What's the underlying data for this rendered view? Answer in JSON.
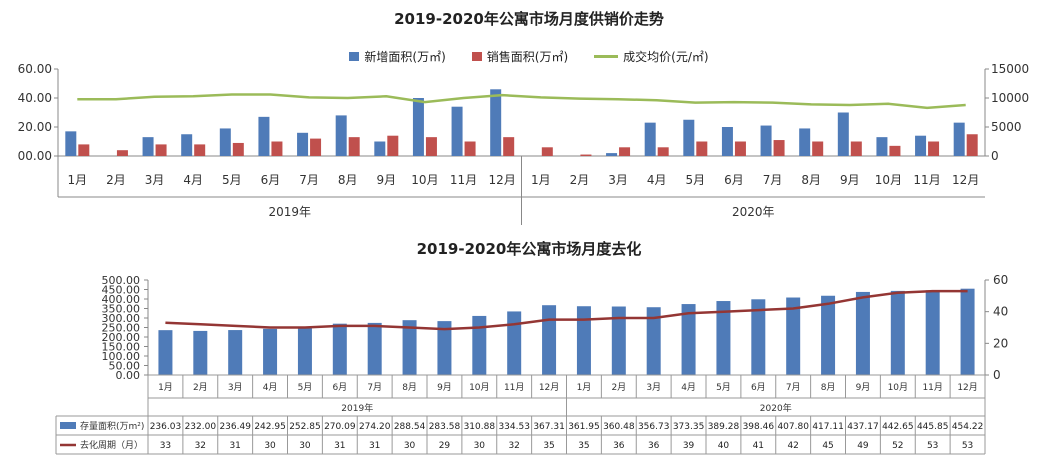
{
  "chart_data": [
    {
      "type": "bar",
      "title": "2019-2020年公寓市场月度供销价走势",
      "categories": [
        "1月",
        "2月",
        "3月",
        "4月",
        "5月",
        "6月",
        "7月",
        "8月",
        "9月",
        "10月",
        "11月",
        "12月",
        "1月",
        "2月",
        "3月",
        "4月",
        "5月",
        "6月",
        "7月",
        "8月",
        "9月",
        "10月",
        "11月",
        "12月"
      ],
      "groups": [
        {
          "label": "2019年",
          "span": 12
        },
        {
          "label": "2020年",
          "span": 12
        }
      ],
      "series": [
        {
          "name": "新增面积(万㎡)",
          "type": "bar",
          "axis": "left",
          "color": "#4F7BB8",
          "values": [
            17,
            0,
            13,
            15,
            19,
            27,
            16,
            28,
            10,
            40,
            34,
            46,
            0,
            0,
            2,
            23,
            25,
            20,
            21,
            19,
            30,
            13,
            14,
            23
          ]
        },
        {
          "name": "销售面积(万㎡)",
          "type": "bar",
          "axis": "left",
          "color": "#C0504D",
          "values": [
            8,
            4,
            8,
            8,
            9,
            10,
            12,
            13,
            14,
            13,
            10,
            13,
            6,
            1,
            6,
            6,
            10,
            10,
            11,
            10,
            10,
            7,
            10,
            15
          ]
        },
        {
          "name": "成交均价(元/㎡)",
          "type": "line",
          "axis": "right",
          "color": "#9BBB59",
          "values": [
            9800,
            9800,
            10200,
            10300,
            10600,
            10600,
            10100,
            10000,
            10300,
            9300,
            10000,
            10500,
            10100,
            9900,
            9800,
            9600,
            9200,
            9300,
            9200,
            8900,
            8800,
            9000,
            8300,
            8800
          ]
        }
      ],
      "ylim": [
        0,
        60
      ],
      "y_ticks": [
        "60.00",
        "40.00",
        "20.00",
        "00.00"
      ],
      "y2lim": [
        0,
        15000
      ],
      "y2_ticks": [
        "15000",
        "10000",
        "5000",
        "0"
      ],
      "legend": "top-center",
      "grid": false
    },
    {
      "type": "bar",
      "title": "2019-2020年公寓市场月度去化",
      "categories": [
        "1月",
        "2月",
        "3月",
        "4月",
        "5月",
        "6月",
        "7月",
        "8月",
        "9月",
        "10月",
        "11月",
        "12月",
        "1月",
        "2月",
        "3月",
        "4月",
        "5月",
        "6月",
        "7月",
        "8月",
        "9月",
        "10月",
        "11月",
        "12月"
      ],
      "groups": [
        {
          "label": "2019年",
          "span": 12
        },
        {
          "label": "2020年",
          "span": 12
        }
      ],
      "series": [
        {
          "name": "存量面积(万m²)",
          "type": "bar",
          "axis": "left",
          "color": "#4F7BB8",
          "values": [
            236.03,
            232.0,
            236.49,
            242.95,
            252.85,
            270.09,
            274.2,
            288.54,
            283.58,
            310.88,
            334.53,
            367.31,
            361.95,
            360.48,
            356.73,
            373.35,
            389.28,
            398.46,
            407.8,
            417.11,
            437.17,
            442.65,
            445.85,
            454.22
          ],
          "labels": [
            "236.03",
            "232.00",
            "236.49",
            "242.95",
            "252.85",
            "270.09",
            "274.20",
            "288.54",
            "283.58",
            "310.88",
            "334.53",
            "367.31",
            "361.95",
            "360.48",
            "356.73",
            "373.35",
            "389.28",
            "398.46",
            "407.80",
            "417.11",
            "437.17",
            "442.65",
            "445.85",
            "454.22"
          ]
        },
        {
          "name": "去化周期（月）",
          "type": "line",
          "axis": "right",
          "color": "#943634",
          "values": [
            33,
            32,
            31,
            30,
            30,
            31,
            31,
            30,
            29,
            30,
            32,
            35,
            35,
            36,
            36,
            39,
            40,
            41,
            42,
            45,
            49,
            52,
            53,
            53
          ],
          "labels": [
            "33",
            "32",
            "31",
            "30",
            "30",
            "31",
            "31",
            "30",
            "29",
            "30",
            "32",
            "35",
            "35",
            "36",
            "36",
            "39",
            "40",
            "41",
            "42",
            "45",
            "49",
            "52",
            "53",
            "53"
          ]
        }
      ],
      "ylim": [
        0,
        500
      ],
      "y_ticks": [
        "500.00",
        "450.00",
        "400.00",
        "350.00",
        "300.00",
        "250.00",
        "200.00",
        "150.00",
        "100.00",
        "50.00",
        "0.00"
      ],
      "y2lim": [
        0,
        60
      ],
      "y2_ticks": [
        "60",
        "40",
        "20",
        "0"
      ],
      "legend": "data-table",
      "grid": false
    }
  ]
}
